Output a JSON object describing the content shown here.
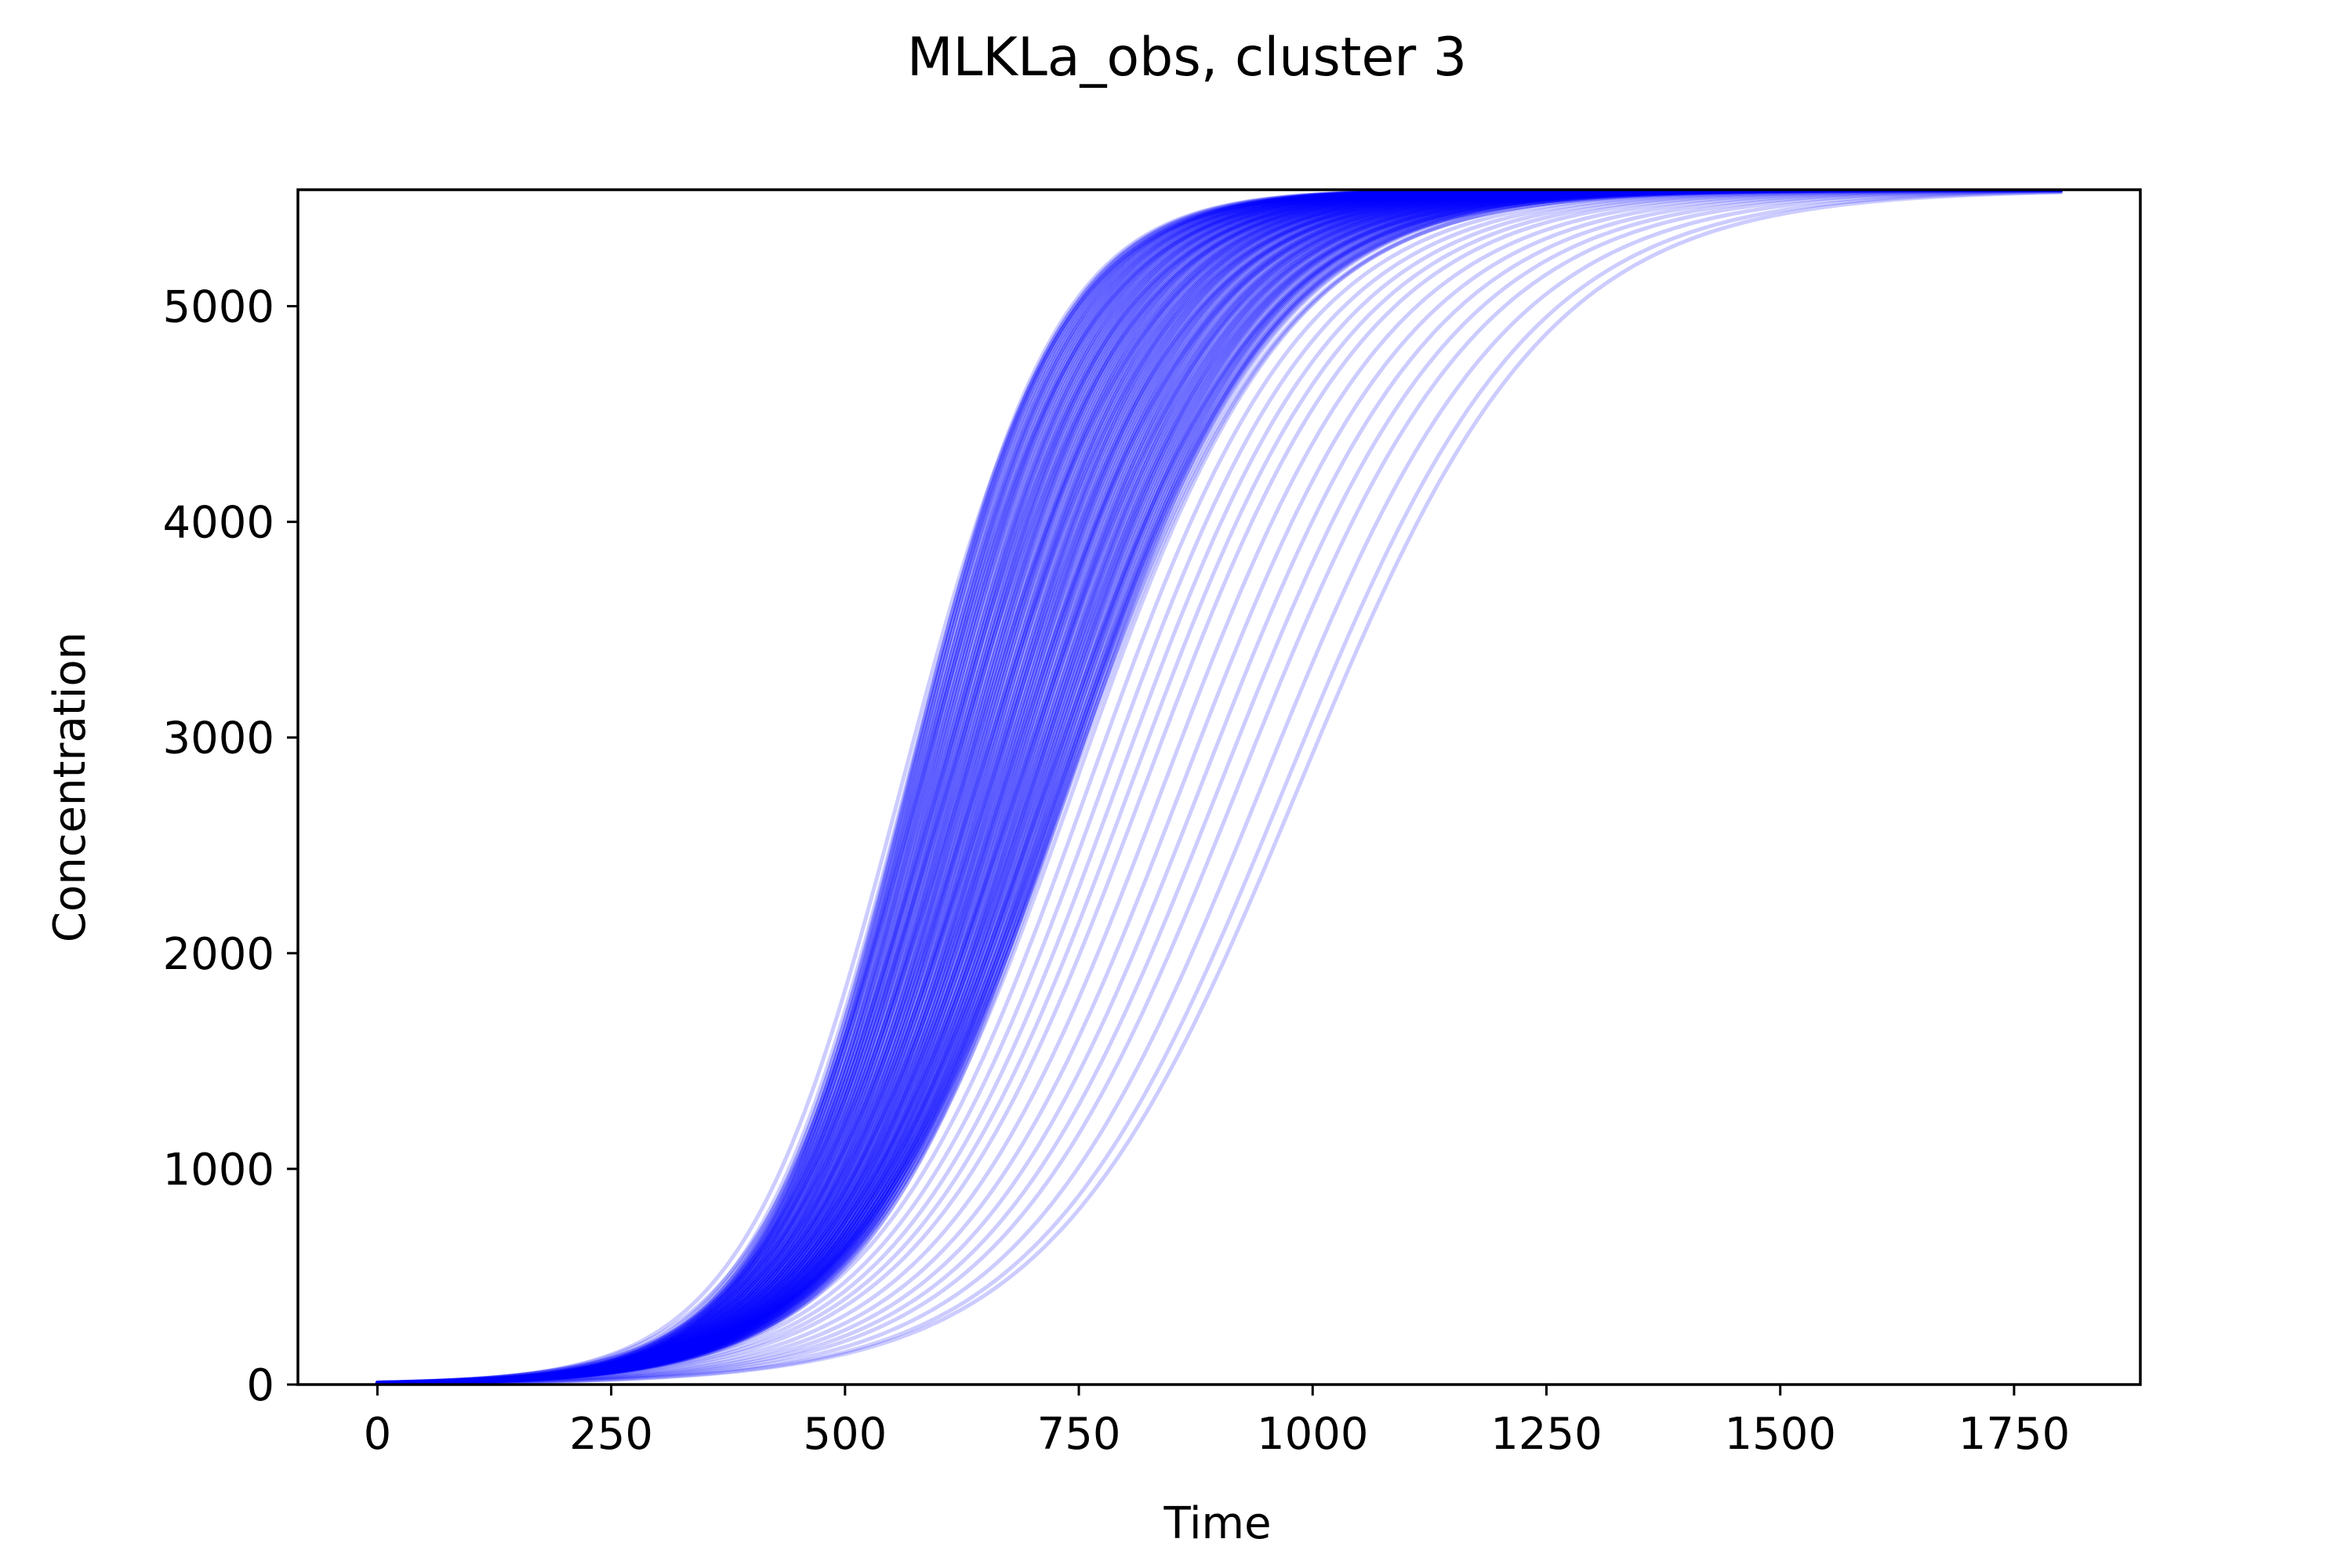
{
  "chart_data": {
    "type": "line",
    "title": "MLKLa_obs, cluster 3",
    "xlabel": "Time",
    "ylabel": "Concentration",
    "xlim": [
      -85,
      1885
    ],
    "ylim": [
      0,
      5540
    ],
    "x_ticks": [
      0,
      250,
      500,
      750,
      1000,
      1250,
      1500,
      1750
    ],
    "y_ticks": [
      0,
      1000,
      2000,
      3000,
      4000,
      5000
    ],
    "grid": false,
    "legend": "none",
    "line_color": "#0000ff",
    "line_opacity": 0.2,
    "x_range": [
      0,
      1800
    ],
    "plateau": 5540,
    "sample_curves": {
      "description_free_note": "",
      "midpoints": [
        560,
        580,
        600,
        610,
        625,
        640,
        655,
        670,
        685,
        700,
        715,
        730,
        745,
        760,
        775,
        790,
        805,
        820,
        840,
        860,
        880,
        900,
        920,
        945,
        970,
        985
      ],
      "steepness": [
        0.0118,
        0.0112,
        0.0108,
        0.0105,
        0.0102,
        0.01,
        0.0098,
        0.0096,
        0.0094,
        0.0092,
        0.009,
        0.0089,
        0.0088,
        0.0087,
        0.0086,
        0.0085,
        0.0084,
        0.0083,
        0.0082,
        0.0081,
        0.008,
        0.0079,
        0.0078,
        0.0077,
        0.0076,
        0.0075
      ]
    }
  }
}
